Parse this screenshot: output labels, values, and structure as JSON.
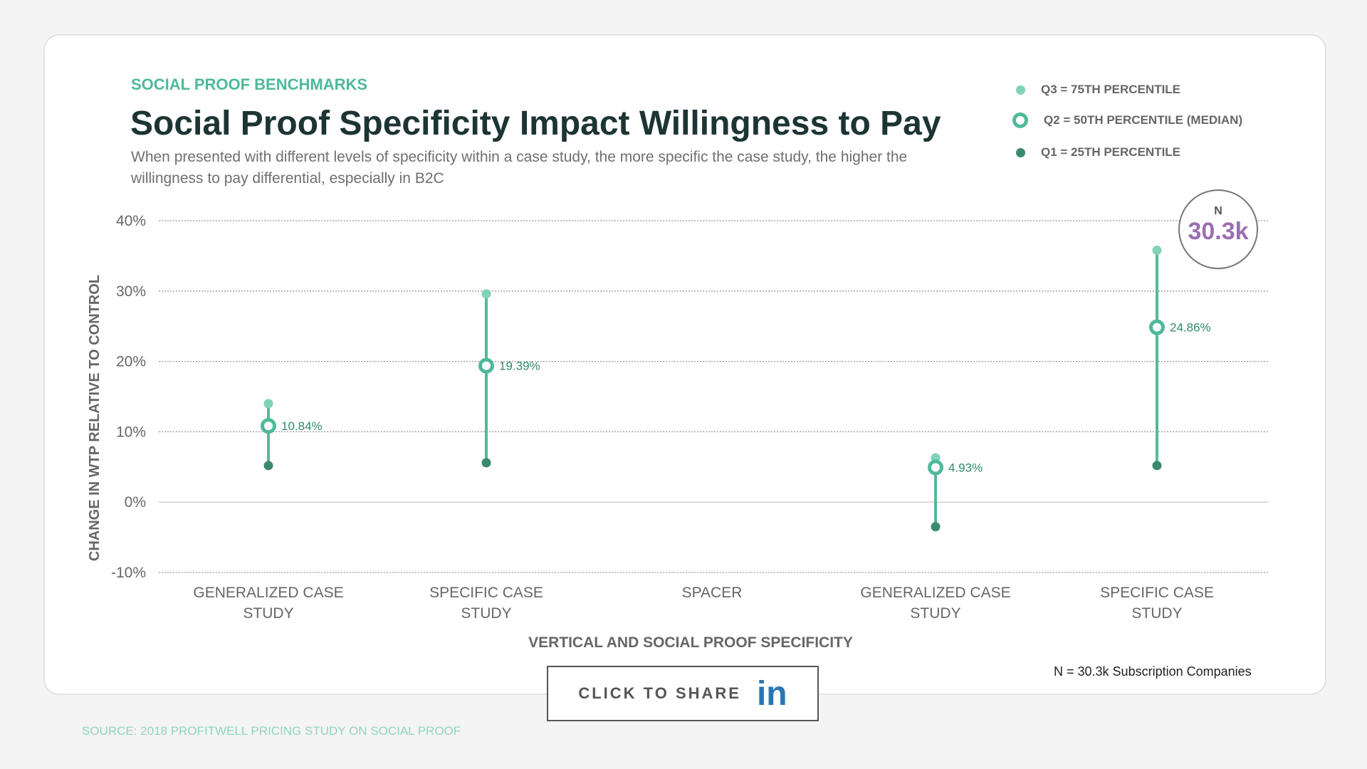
{
  "header": {
    "tag": "SOCIAL PROOF BENCHMARKS",
    "title": "Social Proof Specificity Impact Willingness to Pay",
    "subtitle": "When presented with different levels of specificity within a case study, the more specific the case study, the higher the willingness to pay differential, especially in B2C"
  },
  "legend": [
    {
      "label": "Q3 = 75TH PERCENTILE",
      "color": "#7fd3b8"
    },
    {
      "label": "Q2 = 50TH PERCENTILE (MEDIAN)",
      "color": "#4fb99a"
    },
    {
      "label": "Q1 = 25TH PERCENTILE",
      "color": "#3a8a72"
    }
  ],
  "n_badge": {
    "label": "N",
    "value": "30.3k",
    "color": "#9b6fb0"
  },
  "footnote": "N = 30.3k Subscription Companies",
  "share": {
    "label": "CLICK TO SHARE",
    "icon": "linkedin-icon",
    "icon_text": "in"
  },
  "source": "SOURCE: 2018 PROFITWELL PRICING STUDY ON SOCIAL PROOF",
  "chart_data": {
    "type": "range-dot",
    "xlabel": "VERTICAL AND SOCIAL PROOF SPECIFICITY",
    "ylabel": "CHANGE IN WTP RELATIVE TO CONTROL",
    "ylim": [
      -10,
      40
    ],
    "yticks": [
      40,
      30,
      20,
      10,
      0,
      -10
    ],
    "ytick_labels": [
      "40%",
      "30%",
      "20%",
      "10%",
      "0%",
      "-10%"
    ],
    "grid": true,
    "categories": [
      [
        "GENERALIZED CASE",
        "STUDY"
      ],
      [
        "SPECIFIC CASE",
        "STUDY"
      ],
      [
        "SPACER"
      ],
      [
        "GENERALIZED CASE",
        "STUDY"
      ],
      [
        "SPECIFIC CASE",
        "STUDY"
      ]
    ],
    "q3": [
      14.0,
      29.6,
      null,
      6.3,
      35.8
    ],
    "median": [
      10.84,
      19.39,
      null,
      4.93,
      24.86
    ],
    "median_labels": [
      "10.84%",
      "19.39%",
      "",
      "4.93%",
      "24.86%"
    ],
    "q1": [
      5.2,
      5.6,
      null,
      -3.5,
      5.2
    ]
  }
}
